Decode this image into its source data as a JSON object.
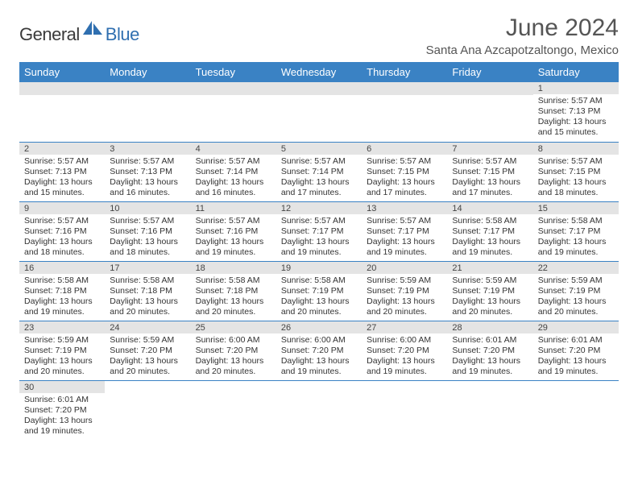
{
  "logo": {
    "part1": "General",
    "part2": "Blue"
  },
  "title": "June 2024",
  "location": "Santa Ana Azcapotzaltongo, Mexico",
  "colors": {
    "header_bg": "#3a82c4",
    "header_text": "#ffffff",
    "daynum_bg": "#e4e4e4",
    "row_divider": "#3a82c4",
    "logo_blue": "#2f6fb0",
    "logo_gray": "#3a3a3a",
    "title_color": "#555555",
    "body_text": "#333333"
  },
  "weekdays": [
    "Sunday",
    "Monday",
    "Tuesday",
    "Wednesday",
    "Thursday",
    "Friday",
    "Saturday"
  ],
  "weeks": [
    [
      null,
      null,
      null,
      null,
      null,
      null,
      {
        "n": "1",
        "sr": "Sunrise: 5:57 AM",
        "ss": "Sunset: 7:13 PM",
        "d1": "Daylight: 13 hours",
        "d2": "and 15 minutes."
      }
    ],
    [
      {
        "n": "2",
        "sr": "Sunrise: 5:57 AM",
        "ss": "Sunset: 7:13 PM",
        "d1": "Daylight: 13 hours",
        "d2": "and 15 minutes."
      },
      {
        "n": "3",
        "sr": "Sunrise: 5:57 AM",
        "ss": "Sunset: 7:13 PM",
        "d1": "Daylight: 13 hours",
        "d2": "and 16 minutes."
      },
      {
        "n": "4",
        "sr": "Sunrise: 5:57 AM",
        "ss": "Sunset: 7:14 PM",
        "d1": "Daylight: 13 hours",
        "d2": "and 16 minutes."
      },
      {
        "n": "5",
        "sr": "Sunrise: 5:57 AM",
        "ss": "Sunset: 7:14 PM",
        "d1": "Daylight: 13 hours",
        "d2": "and 17 minutes."
      },
      {
        "n": "6",
        "sr": "Sunrise: 5:57 AM",
        "ss": "Sunset: 7:15 PM",
        "d1": "Daylight: 13 hours",
        "d2": "and 17 minutes."
      },
      {
        "n": "7",
        "sr": "Sunrise: 5:57 AM",
        "ss": "Sunset: 7:15 PM",
        "d1": "Daylight: 13 hours",
        "d2": "and 17 minutes."
      },
      {
        "n": "8",
        "sr": "Sunrise: 5:57 AM",
        "ss": "Sunset: 7:15 PM",
        "d1": "Daylight: 13 hours",
        "d2": "and 18 minutes."
      }
    ],
    [
      {
        "n": "9",
        "sr": "Sunrise: 5:57 AM",
        "ss": "Sunset: 7:16 PM",
        "d1": "Daylight: 13 hours",
        "d2": "and 18 minutes."
      },
      {
        "n": "10",
        "sr": "Sunrise: 5:57 AM",
        "ss": "Sunset: 7:16 PM",
        "d1": "Daylight: 13 hours",
        "d2": "and 18 minutes."
      },
      {
        "n": "11",
        "sr": "Sunrise: 5:57 AM",
        "ss": "Sunset: 7:16 PM",
        "d1": "Daylight: 13 hours",
        "d2": "and 19 minutes."
      },
      {
        "n": "12",
        "sr": "Sunrise: 5:57 AM",
        "ss": "Sunset: 7:17 PM",
        "d1": "Daylight: 13 hours",
        "d2": "and 19 minutes."
      },
      {
        "n": "13",
        "sr": "Sunrise: 5:57 AM",
        "ss": "Sunset: 7:17 PM",
        "d1": "Daylight: 13 hours",
        "d2": "and 19 minutes."
      },
      {
        "n": "14",
        "sr": "Sunrise: 5:58 AM",
        "ss": "Sunset: 7:17 PM",
        "d1": "Daylight: 13 hours",
        "d2": "and 19 minutes."
      },
      {
        "n": "15",
        "sr": "Sunrise: 5:58 AM",
        "ss": "Sunset: 7:17 PM",
        "d1": "Daylight: 13 hours",
        "d2": "and 19 minutes."
      }
    ],
    [
      {
        "n": "16",
        "sr": "Sunrise: 5:58 AM",
        "ss": "Sunset: 7:18 PM",
        "d1": "Daylight: 13 hours",
        "d2": "and 19 minutes."
      },
      {
        "n": "17",
        "sr": "Sunrise: 5:58 AM",
        "ss": "Sunset: 7:18 PM",
        "d1": "Daylight: 13 hours",
        "d2": "and 20 minutes."
      },
      {
        "n": "18",
        "sr": "Sunrise: 5:58 AM",
        "ss": "Sunset: 7:18 PM",
        "d1": "Daylight: 13 hours",
        "d2": "and 20 minutes."
      },
      {
        "n": "19",
        "sr": "Sunrise: 5:58 AM",
        "ss": "Sunset: 7:19 PM",
        "d1": "Daylight: 13 hours",
        "d2": "and 20 minutes."
      },
      {
        "n": "20",
        "sr": "Sunrise: 5:59 AM",
        "ss": "Sunset: 7:19 PM",
        "d1": "Daylight: 13 hours",
        "d2": "and 20 minutes."
      },
      {
        "n": "21",
        "sr": "Sunrise: 5:59 AM",
        "ss": "Sunset: 7:19 PM",
        "d1": "Daylight: 13 hours",
        "d2": "and 20 minutes."
      },
      {
        "n": "22",
        "sr": "Sunrise: 5:59 AM",
        "ss": "Sunset: 7:19 PM",
        "d1": "Daylight: 13 hours",
        "d2": "and 20 minutes."
      }
    ],
    [
      {
        "n": "23",
        "sr": "Sunrise: 5:59 AM",
        "ss": "Sunset: 7:19 PM",
        "d1": "Daylight: 13 hours",
        "d2": "and 20 minutes."
      },
      {
        "n": "24",
        "sr": "Sunrise: 5:59 AM",
        "ss": "Sunset: 7:20 PM",
        "d1": "Daylight: 13 hours",
        "d2": "and 20 minutes."
      },
      {
        "n": "25",
        "sr": "Sunrise: 6:00 AM",
        "ss": "Sunset: 7:20 PM",
        "d1": "Daylight: 13 hours",
        "d2": "and 20 minutes."
      },
      {
        "n": "26",
        "sr": "Sunrise: 6:00 AM",
        "ss": "Sunset: 7:20 PM",
        "d1": "Daylight: 13 hours",
        "d2": "and 19 minutes."
      },
      {
        "n": "27",
        "sr": "Sunrise: 6:00 AM",
        "ss": "Sunset: 7:20 PM",
        "d1": "Daylight: 13 hours",
        "d2": "and 19 minutes."
      },
      {
        "n": "28",
        "sr": "Sunrise: 6:01 AM",
        "ss": "Sunset: 7:20 PM",
        "d1": "Daylight: 13 hours",
        "d2": "and 19 minutes."
      },
      {
        "n": "29",
        "sr": "Sunrise: 6:01 AM",
        "ss": "Sunset: 7:20 PM",
        "d1": "Daylight: 13 hours",
        "d2": "and 19 minutes."
      }
    ],
    [
      {
        "n": "30",
        "sr": "Sunrise: 6:01 AM",
        "ss": "Sunset: 7:20 PM",
        "d1": "Daylight: 13 hours",
        "d2": "and 19 minutes."
      },
      null,
      null,
      null,
      null,
      null,
      null
    ]
  ]
}
